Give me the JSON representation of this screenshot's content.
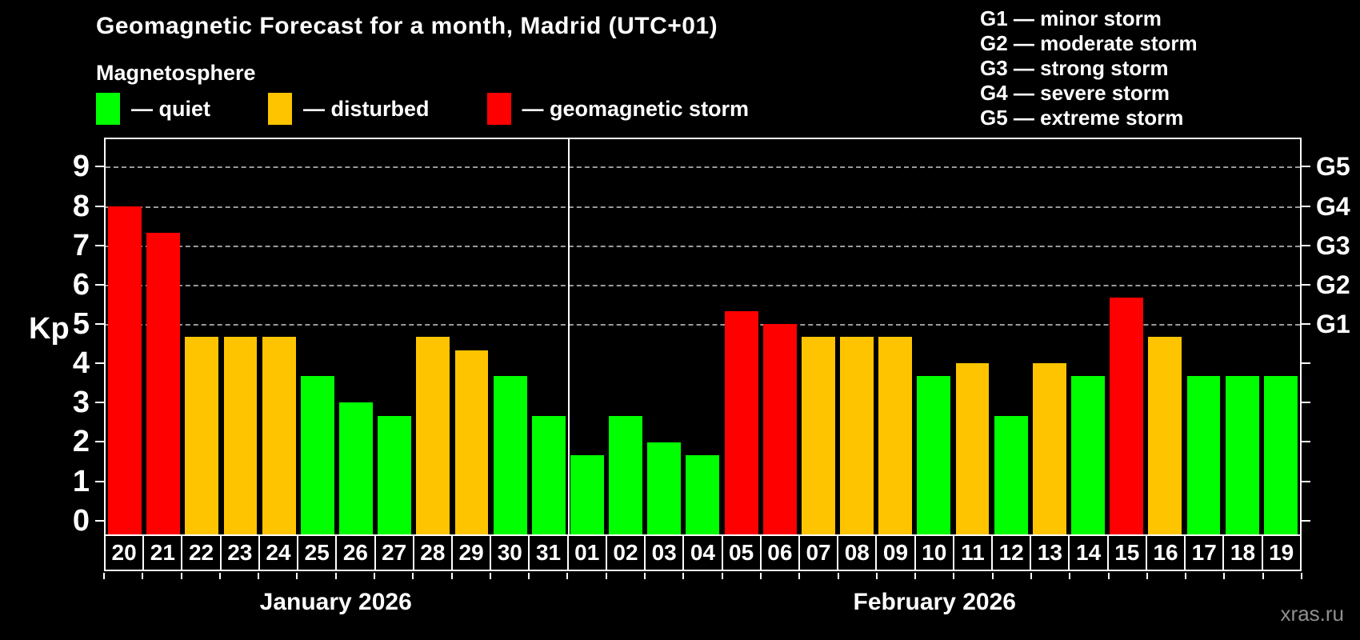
{
  "title": "Geomagnetic Forecast for a month, Madrid (UTC+01)",
  "subtitle": "Magnetosphere",
  "legend": {
    "items": [
      {
        "label": "— quiet",
        "status": "quiet",
        "color": "#00FF00"
      },
      {
        "label": "— disturbed",
        "status": "disturbed",
        "color": "#FFC400"
      },
      {
        "label": "— geomagnetic storm",
        "status": "storm",
        "color": "#FF0000"
      }
    ]
  },
  "g_scale_legend": [
    "G1 — minor storm",
    "G2 — moderate storm",
    "G3 — strong storm",
    "G4 — severe storm",
    "G5 — extreme storm"
  ],
  "watermark": "xras.ru",
  "chart_data": {
    "type": "bar",
    "ylabel": "Kp",
    "ylim": [
      -0.35,
      9.7
    ],
    "y_ticks": [
      0,
      1,
      2,
      3,
      4,
      5,
      6,
      7,
      8,
      9
    ],
    "gridlines_at": [
      5,
      6,
      7,
      8,
      9
    ],
    "right_axis_labels": [
      {
        "kp": 5,
        "label": "G1"
      },
      {
        "kp": 6,
        "label": "G2"
      },
      {
        "kp": 7,
        "label": "G3"
      },
      {
        "kp": 8,
        "label": "G4"
      },
      {
        "kp": 9,
        "label": "G5"
      }
    ],
    "colors": {
      "quiet": "#00FF00",
      "disturbed": "#FFC400",
      "storm": "#FF0000"
    },
    "grid_color": "#9a9a9a",
    "background": "#000000",
    "groups": [
      {
        "label": "January 2026",
        "days": [
          {
            "day": "20",
            "kp": 8.0,
            "status": "storm"
          },
          {
            "day": "21",
            "kp": 7.33,
            "status": "storm"
          },
          {
            "day": "22",
            "kp": 4.67,
            "status": "disturbed"
          },
          {
            "day": "23",
            "kp": 4.67,
            "status": "disturbed"
          },
          {
            "day": "24",
            "kp": 4.67,
            "status": "disturbed"
          },
          {
            "day": "25",
            "kp": 3.67,
            "status": "quiet"
          },
          {
            "day": "26",
            "kp": 3.0,
            "status": "quiet"
          },
          {
            "day": "27",
            "kp": 2.67,
            "status": "quiet"
          },
          {
            "day": "28",
            "kp": 4.67,
            "status": "disturbed"
          },
          {
            "day": "29",
            "kp": 4.33,
            "status": "disturbed"
          },
          {
            "day": "30",
            "kp": 3.67,
            "status": "quiet"
          },
          {
            "day": "31",
            "kp": 2.67,
            "status": "quiet"
          }
        ]
      },
      {
        "label": "February 2026",
        "days": [
          {
            "day": "01",
            "kp": 1.67,
            "status": "quiet"
          },
          {
            "day": "02",
            "kp": 2.67,
            "status": "quiet"
          },
          {
            "day": "03",
            "kp": 2.0,
            "status": "quiet"
          },
          {
            "day": "04",
            "kp": 1.67,
            "status": "quiet"
          },
          {
            "day": "05",
            "kp": 5.33,
            "status": "storm"
          },
          {
            "day": "06",
            "kp": 5.0,
            "status": "storm"
          },
          {
            "day": "07",
            "kp": 4.67,
            "status": "disturbed"
          },
          {
            "day": "08",
            "kp": 4.67,
            "status": "disturbed"
          },
          {
            "day": "09",
            "kp": 4.67,
            "status": "disturbed"
          },
          {
            "day": "10",
            "kp": 3.67,
            "status": "quiet"
          },
          {
            "day": "11",
            "kp": 4.0,
            "status": "disturbed"
          },
          {
            "day": "12",
            "kp": 2.67,
            "status": "quiet"
          },
          {
            "day": "13",
            "kp": 4.0,
            "status": "disturbed"
          },
          {
            "day": "14",
            "kp": 3.67,
            "status": "quiet"
          },
          {
            "day": "15",
            "kp": 5.67,
            "status": "storm"
          },
          {
            "day": "16",
            "kp": 4.67,
            "status": "disturbed"
          },
          {
            "day": "17",
            "kp": 3.67,
            "status": "quiet"
          },
          {
            "day": "18",
            "kp": 3.67,
            "status": "quiet"
          },
          {
            "day": "19",
            "kp": 3.67,
            "status": "quiet"
          }
        ]
      }
    ]
  }
}
